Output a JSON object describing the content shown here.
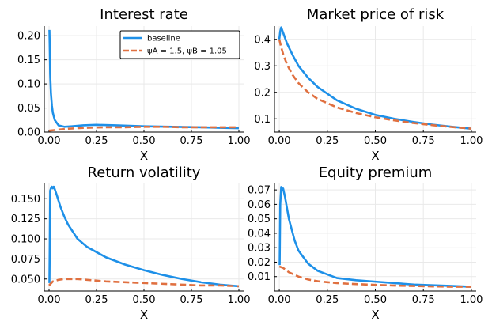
{
  "chart_data": [
    {
      "type": "line",
      "title": "Interest rate",
      "xlabel": "X",
      "ylabel": "",
      "xlim": [
        0,
        1
      ],
      "ylim": [
        0,
        0.22
      ],
      "xticks": [
        0,
        0.25,
        0.5,
        0.75,
        1
      ],
      "xtick_labels": [
        "0.00",
        "0.25",
        "0.50",
        "0.75",
        "1.00"
      ],
      "yticks": [
        0,
        0.05,
        0.1,
        0.15,
        0.2
      ],
      "ytick_labels": [
        "0.00",
        "0.05",
        "0.10",
        "0.15",
        "0.20"
      ],
      "grid": true,
      "legend": "top-right",
      "series": [
        {
          "name": "baseline",
          "color": "#1e90e8",
          "dash": "solid",
          "x": [
            0.002,
            0.004,
            0.006,
            0.01,
            0.015,
            0.02,
            0.03,
            0.05,
            0.08,
            0.12,
            0.18,
            0.25,
            0.35,
            0.5,
            0.65,
            0.8,
            0.9,
            1.0
          ],
          "y": [
            0.212,
            0.17,
            0.12,
            0.08,
            0.055,
            0.04,
            0.025,
            0.014,
            0.011,
            0.012,
            0.014,
            0.015,
            0.014,
            0.012,
            0.011,
            0.01,
            0.009,
            0.008
          ]
        },
        {
          "name": "ψA = 1.5, ψB = 1.05",
          "color": "#e07040",
          "dash": "dashed",
          "x": [
            0.0,
            0.05,
            0.1,
            0.2,
            0.3,
            0.4,
            0.5,
            0.6,
            0.7,
            0.8,
            0.9,
            1.0
          ],
          "y": [
            0.003,
            0.005,
            0.007,
            0.009,
            0.01,
            0.01,
            0.011,
            0.011,
            0.01,
            0.01,
            0.01,
            0.01
          ]
        }
      ]
    },
    {
      "type": "line",
      "title": "Market price of risk",
      "xlabel": "X",
      "ylabel": "",
      "xlim": [
        0,
        1
      ],
      "ylim": [
        0.05,
        0.45
      ],
      "xticks": [
        0,
        0.25,
        0.5,
        0.75,
        1
      ],
      "xtick_labels": [
        "0.00",
        "0.25",
        "0.50",
        "0.75",
        "1.00"
      ],
      "yticks": [
        0.1,
        0.2,
        0.3,
        0.4
      ],
      "ytick_labels": [
        "0.1",
        "0.2",
        "0.3",
        "0.4"
      ],
      "grid": true,
      "series": [
        {
          "name": "baseline",
          "color": "#1e90e8",
          "dash": "solid",
          "x": [
            0.0,
            0.005,
            0.01,
            0.02,
            0.04,
            0.07,
            0.1,
            0.15,
            0.2,
            0.3,
            0.4,
            0.5,
            0.6,
            0.7,
            0.8,
            0.9,
            1.0
          ],
          "y": [
            0.4,
            0.43,
            0.445,
            0.425,
            0.385,
            0.34,
            0.3,
            0.255,
            0.22,
            0.17,
            0.138,
            0.115,
            0.1,
            0.088,
            0.078,
            0.07,
            0.063
          ]
        },
        {
          "name": "ψA = 1.5, ψB = 1.05",
          "color": "#e07040",
          "dash": "dashed",
          "x": [
            0.0,
            0.01,
            0.02,
            0.04,
            0.07,
            0.1,
            0.15,
            0.2,
            0.3,
            0.4,
            0.5,
            0.6,
            0.7,
            0.8,
            0.9,
            1.0
          ],
          "y": [
            0.4,
            0.37,
            0.345,
            0.305,
            0.265,
            0.235,
            0.2,
            0.175,
            0.143,
            0.122,
            0.106,
            0.094,
            0.084,
            0.076,
            0.069,
            0.063
          ]
        }
      ]
    },
    {
      "type": "line",
      "title": "Return volatility",
      "xlabel": "X",
      "ylabel": "",
      "xlim": [
        0,
        1
      ],
      "ylim": [
        0.035,
        0.17
      ],
      "xticks": [
        0,
        0.25,
        0.5,
        0.75,
        1
      ],
      "xtick_labels": [
        "0.00",
        "0.25",
        "0.50",
        "0.75",
        "1.00"
      ],
      "yticks": [
        0.05,
        0.075,
        0.1,
        0.125,
        0.15
      ],
      "ytick_labels": [
        "0.050",
        "0.075",
        "0.100",
        "0.125",
        "0.150"
      ],
      "grid": true,
      "series": [
        {
          "name": "baseline",
          "color": "#1e90e8",
          "dash": "solid",
          "x": [
            0.002,
            0.004,
            0.006,
            0.01,
            0.015,
            0.02,
            0.025,
            0.03,
            0.04,
            0.06,
            0.08,
            0.1,
            0.15,
            0.2,
            0.3,
            0.4,
            0.5,
            0.6,
            0.7,
            0.8,
            0.9,
            1.0
          ],
          "y": [
            0.045,
            0.1,
            0.16,
            0.163,
            0.165,
            0.163,
            0.165,
            0.162,
            0.155,
            0.14,
            0.128,
            0.118,
            0.1,
            0.09,
            0.077,
            0.068,
            0.061,
            0.055,
            0.05,
            0.046,
            0.043,
            0.041
          ]
        },
        {
          "name": "ψA = 1.5, ψB = 1.05",
          "color": "#e07040",
          "dash": "dashed",
          "x": [
            0.0,
            0.02,
            0.05,
            0.08,
            0.1,
            0.15,
            0.2,
            0.3,
            0.4,
            0.5,
            0.6,
            0.7,
            0.8,
            0.9,
            1.0
          ],
          "y": [
            0.042,
            0.047,
            0.049,
            0.05,
            0.05,
            0.05,
            0.049,
            0.047,
            0.046,
            0.045,
            0.044,
            0.043,
            0.042,
            0.042,
            0.041
          ]
        }
      ]
    },
    {
      "type": "line",
      "title": "Equity premium",
      "xlabel": "X",
      "ylabel": "",
      "xlim": [
        0,
        1
      ],
      "ylim": [
        0,
        0.075
      ],
      "xticks": [
        0,
        0.25,
        0.5,
        0.75,
        1
      ],
      "xtick_labels": [
        "0.00",
        "0.25",
        "0.50",
        "0.75",
        "1.00"
      ],
      "yticks": [
        0.01,
        0.02,
        0.03,
        0.04,
        0.05,
        0.06,
        0.07
      ],
      "ytick_labels": [
        "0.01",
        "0.02",
        "0.03",
        "0.04",
        "0.05",
        "0.06",
        "0.07"
      ],
      "grid": true,
      "series": [
        {
          "name": "baseline",
          "color": "#1e90e8",
          "dash": "solid",
          "x": [
            0.002,
            0.005,
            0.01,
            0.015,
            0.02,
            0.03,
            0.05,
            0.08,
            0.1,
            0.15,
            0.2,
            0.3,
            0.4,
            0.5,
            0.6,
            0.7,
            0.8,
            0.9,
            1.0
          ],
          "y": [
            0.018,
            0.06,
            0.072,
            0.07,
            0.071,
            0.065,
            0.05,
            0.035,
            0.028,
            0.019,
            0.014,
            0.009,
            0.0075,
            0.0065,
            0.0055,
            0.0045,
            0.004,
            0.0035,
            0.003
          ]
        },
        {
          "name": "ψA = 1.5, ψB = 1.05",
          "color": "#e07040",
          "dash": "dashed",
          "x": [
            0.0,
            0.02,
            0.05,
            0.1,
            0.15,
            0.2,
            0.3,
            0.4,
            0.5,
            0.6,
            0.7,
            0.8,
            0.9,
            1.0
          ],
          "y": [
            0.017,
            0.016,
            0.013,
            0.01,
            0.008,
            0.0068,
            0.0055,
            0.0048,
            0.0043,
            0.0038,
            0.0035,
            0.0032,
            0.003,
            0.003
          ]
        }
      ]
    }
  ]
}
